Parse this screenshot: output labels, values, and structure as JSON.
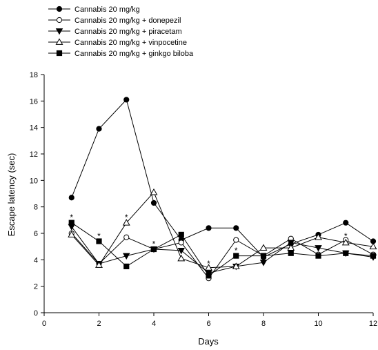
{
  "chart_data": {
    "type": "line",
    "title": "",
    "xlabel": "Days",
    "ylabel": "Escape latency (sec)",
    "xlim": [
      0,
      12
    ],
    "ylim": [
      0,
      18
    ],
    "xticks": [
      0,
      2,
      4,
      6,
      8,
      10,
      12
    ],
    "yticks": [
      0,
      2,
      4,
      6,
      8,
      10,
      12,
      14,
      16,
      18
    ],
    "grid": false,
    "legend_position": "top-left",
    "x": [
      1,
      2,
      3,
      4,
      5,
      6,
      7,
      8,
      9,
      10,
      11,
      12
    ],
    "series": [
      {
        "name": "Cannabis 20 mg/kg",
        "marker": "circle-filled",
        "values": [
          8.7,
          13.9,
          16.1,
          8.3,
          5.5,
          6.4,
          6.4,
          4.2,
          5.2,
          5.9,
          6.8,
          5.4
        ]
      },
      {
        "name": "Cannabis 20 mg/kg + donepezil",
        "marker": "circle-open",
        "values": [
          6.0,
          3.7,
          5.7,
          4.8,
          5.3,
          2.6,
          5.5,
          4.3,
          5.6,
          4.4,
          5.5,
          4.4
        ]
      },
      {
        "name": "Cannabis 20 mg/kg + piracetam",
        "marker": "triangle-down-filled",
        "values": [
          6.5,
          3.7,
          4.3,
          4.8,
          4.7,
          3.0,
          3.5,
          3.8,
          5.3,
          4.9,
          4.5,
          4.2
        ]
      },
      {
        "name": "Cannabis 20 mg/kg + vinpocetine",
        "marker": "triangle-up-open",
        "values": [
          5.9,
          3.6,
          6.8,
          9.1,
          4.1,
          3.4,
          3.5,
          4.9,
          4.9,
          5.7,
          5.3,
          5.0
        ]
      },
      {
        "name": "Cannabis 20 mg/kg + ginkgo biloba",
        "marker": "square-filled",
        "values": [
          6.8,
          5.4,
          3.5,
          4.8,
          5.9,
          2.8,
          4.3,
          4.3,
          4.5,
          4.3,
          4.5,
          4.3
        ]
      }
    ],
    "annotations": [
      {
        "text": "*",
        "x": 1,
        "y": 7.3
      },
      {
        "text": "*",
        "x": 2,
        "y": 5.9
      },
      {
        "text": "*",
        "x": 3,
        "y": 7.3
      },
      {
        "text": "*",
        "x": 4,
        "y": 5.3
      },
      {
        "text": "*",
        "x": 6,
        "y": 3.8
      },
      {
        "text": "*",
        "x": 7,
        "y": 4.8
      },
      {
        "text": "*",
        "x": 11,
        "y": 5.9
      }
    ]
  }
}
